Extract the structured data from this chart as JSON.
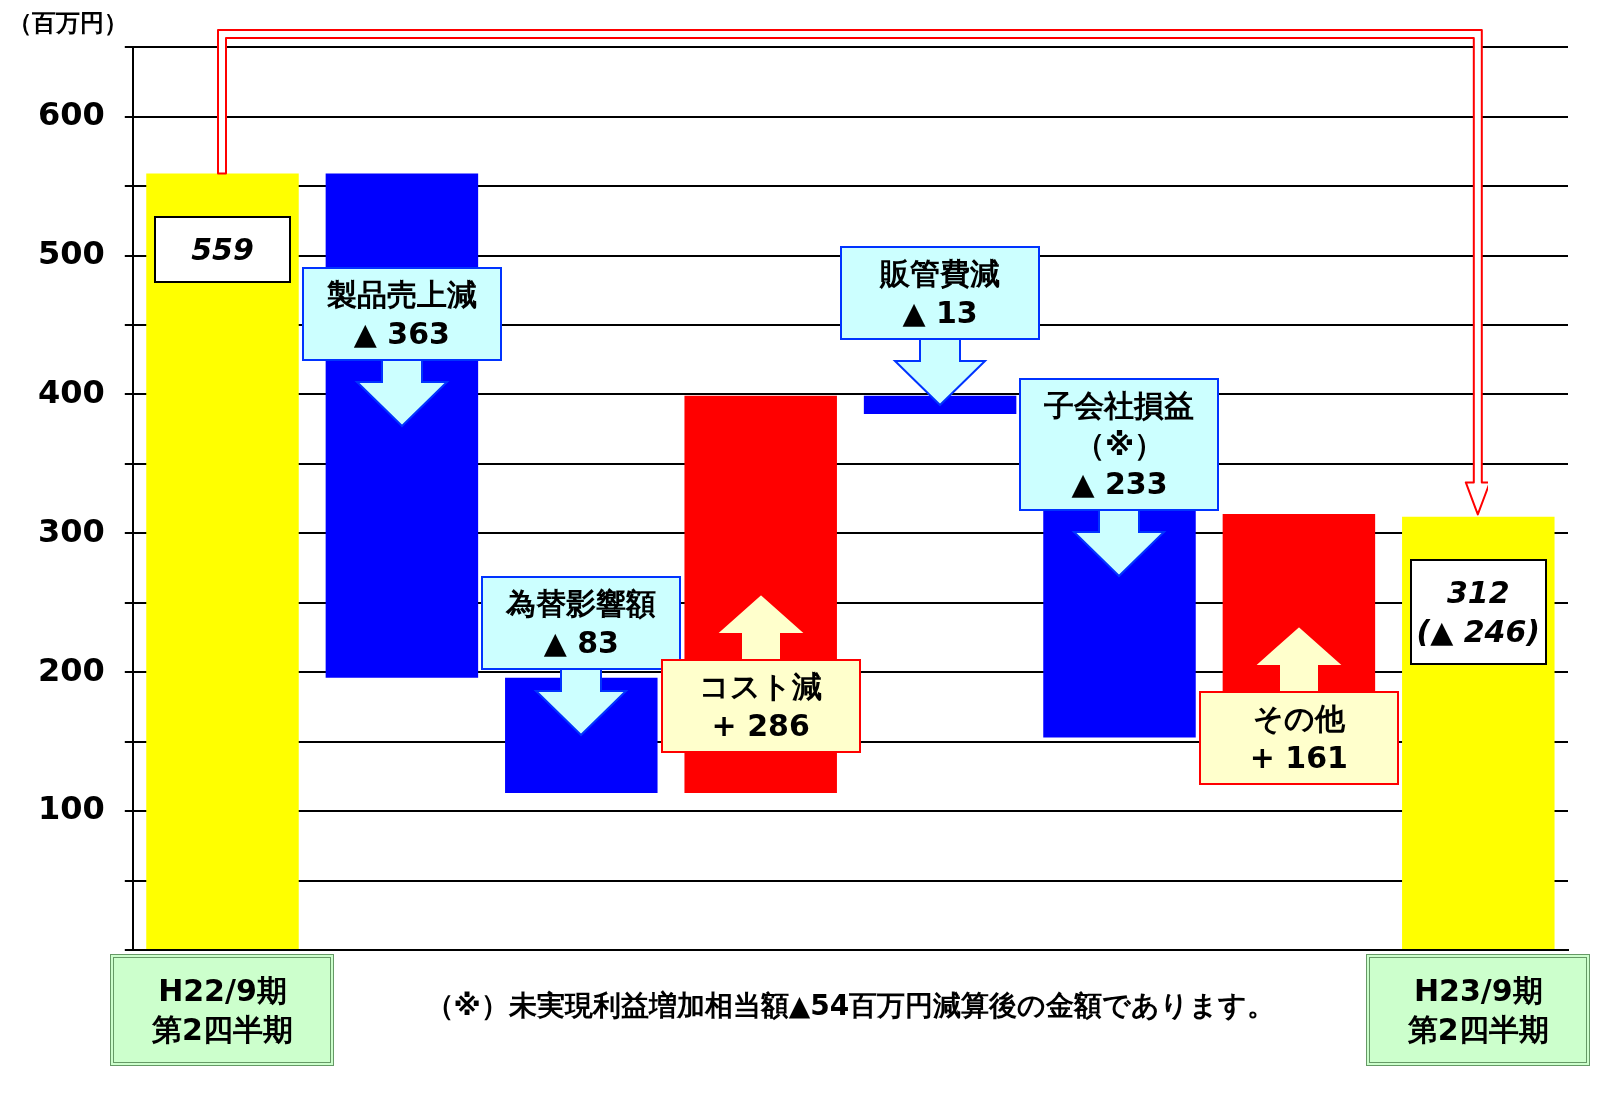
{
  "chart_data": {
    "type": "bar",
    "ylabel": "（百万円）",
    "categories": [
      "H22/9期第2四半期",
      "製品売上減",
      "為替影響額",
      "コスト減",
      "販管費減",
      "子会社損益（※）",
      "その他",
      "H23/9期第2四半期"
    ],
    "values": [
      559,
      -363,
      -83,
      286,
      -13,
      -233,
      161,
      312
    ],
    "base": [
      null,
      559,
      196,
      113,
      399,
      386,
      153,
      null
    ],
    "colors": [
      "#ffff00",
      "#0000ff",
      "#0000ff",
      "#ff0000",
      "#0000ff",
      "#0000ff",
      "#ff0000",
      "#ffff00"
    ],
    "value_labels": [
      "559",
      "▲ 363",
      "▲ 83",
      "+ 286",
      "▲ 13",
      "▲ 233",
      "+ 161",
      "312\n(▲ 246)"
    ],
    "ylim": [
      0,
      650
    ],
    "yticks": [
      {
        "value": 0,
        "label": null
      },
      {
        "value": 50,
        "label": null
      },
      100,
      {
        "value": 150,
        "label": null
      },
      200,
      {
        "value": 250,
        "label": null
      },
      300,
      {
        "value": 350,
        "label": null
      },
      400,
      {
        "value": 450,
        "label": null
      },
      500,
      {
        "value": 550,
        "label": null
      },
      600,
      {
        "value": 650,
        "label": null
      }
    ],
    "grid": "y",
    "legend": false,
    "annotations": [
      "（※）未実現利益増加相当額▲54百万円減算後の金額であります。"
    ]
  }
}
